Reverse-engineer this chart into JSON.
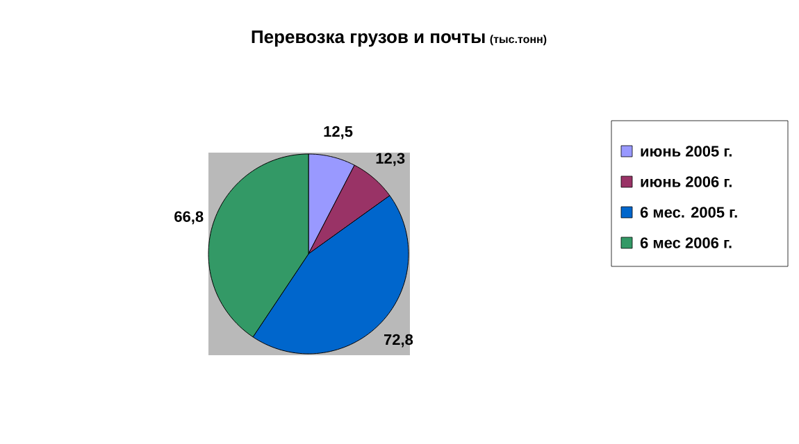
{
  "chart_data": {
    "type": "pie",
    "title": "Перевозка грузов и почты",
    "subtitle": "(тыс.тонн)",
    "categories": [
      "июнь 2005 г.",
      "июнь 2006 г.",
      "6 мес. 2005 г.",
      "6 мес 2006 г."
    ],
    "values": [
      12.5,
      12.3,
      72.8,
      66.8
    ],
    "value_labels": [
      "12,5",
      "12,3",
      "72,8",
      "66,8"
    ],
    "colors": [
      "#9999ff",
      "#993366",
      "#0066cc",
      "#339966"
    ],
    "legend": "right"
  }
}
